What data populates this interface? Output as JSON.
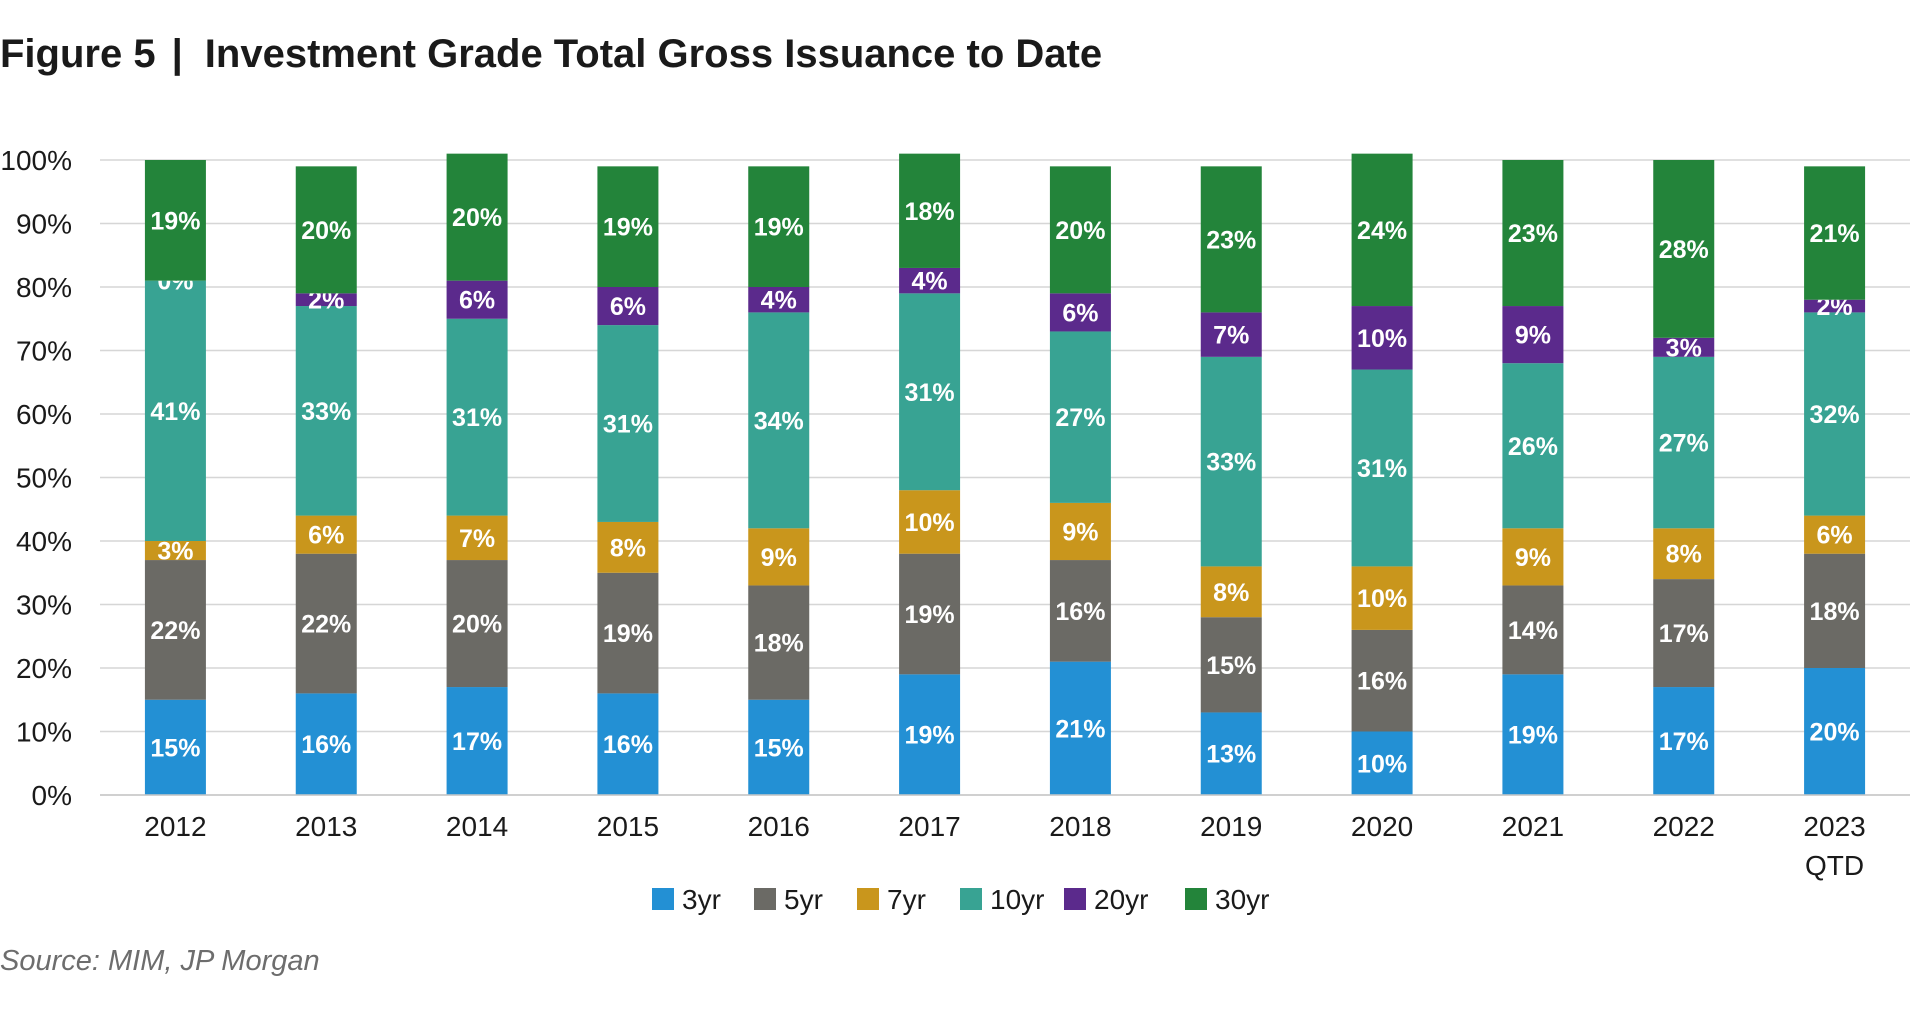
{
  "title": {
    "figure": "Figure 5",
    "separator": "|",
    "text": "Investment Grade Total Gross Issuance to Date"
  },
  "source": "Source: MIM, JP Morgan",
  "chart_data": {
    "type": "bar",
    "stacked": true,
    "categories": [
      "2012",
      "2013",
      "2014",
      "2015",
      "2016",
      "2017",
      "2018",
      "2019",
      "2020",
      "2021",
      "2022",
      "2023 QTD"
    ],
    "ylim": [
      0,
      100
    ],
    "yticks": [
      0,
      10,
      20,
      30,
      40,
      50,
      60,
      70,
      80,
      90,
      100
    ],
    "ytick_labels": [
      "0%",
      "10%",
      "20%",
      "30%",
      "40%",
      "50%",
      "60%",
      "70%",
      "80%",
      "90%",
      "100%"
    ],
    "grid": true,
    "legend_position": "bottom",
    "series": [
      {
        "name": "3yr",
        "color": "#2390d4",
        "values": [
          15,
          16,
          17,
          16,
          15,
          19,
          21,
          13,
          10,
          19,
          17,
          20
        ]
      },
      {
        "name": "5yr",
        "color": "#6b6a65",
        "values": [
          22,
          22,
          20,
          19,
          18,
          19,
          16,
          15,
          16,
          14,
          17,
          18
        ]
      },
      {
        "name": "7yr",
        "color": "#c9961c",
        "values": [
          3,
          6,
          7,
          8,
          9,
          10,
          9,
          8,
          10,
          9,
          8,
          6
        ]
      },
      {
        "name": "10yr",
        "color": "#38a393",
        "values": [
          41,
          33,
          31,
          31,
          34,
          31,
          27,
          33,
          31,
          26,
          27,
          32
        ]
      },
      {
        "name": "20yr",
        "color": "#5b2a8c",
        "values": [
          0,
          2,
          6,
          6,
          4,
          4,
          6,
          7,
          10,
          9,
          3,
          2
        ]
      },
      {
        "name": "30yr",
        "color": "#23843a",
        "values": [
          19,
          20,
          20,
          19,
          19,
          18,
          20,
          23,
          24,
          23,
          28,
          21
        ]
      }
    ]
  }
}
